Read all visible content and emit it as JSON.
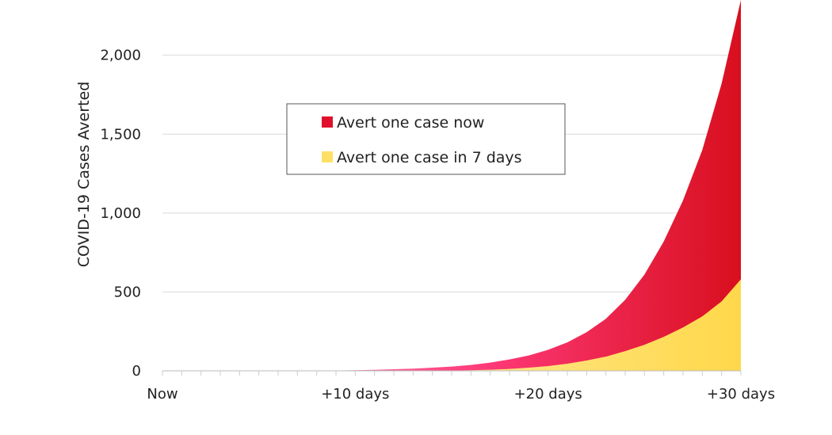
{
  "chart_data": {
    "type": "area",
    "title": "",
    "xlabel": "",
    "ylabel": "COVID-19 Cases Averted",
    "x_ticks": [
      "Now",
      "+10 days",
      "+20 days",
      "+30 days"
    ],
    "x_tick_days": [
      0,
      10,
      20,
      30
    ],
    "ylim": [
      0,
      2350
    ],
    "y_ticks": [
      0,
      500,
      1000,
      1500,
      2000
    ],
    "y_tick_labels": [
      "0",
      "500",
      "1,000",
      "1,500",
      "2,000"
    ],
    "grid": "horizontal",
    "legend_position": "top-left-center",
    "x_days": [
      0,
      1,
      2,
      3,
      4,
      5,
      6,
      7,
      8,
      9,
      10,
      11,
      12,
      13,
      14,
      15,
      16,
      17,
      18,
      19,
      20,
      21,
      22,
      23,
      24,
      25,
      26,
      27,
      28,
      29,
      30
    ],
    "series": [
      {
        "name": "Avert one case now",
        "color": "#e0102c",
        "values": [
          0,
          0,
          0,
          0,
          0,
          0,
          0,
          0,
          0,
          2,
          4,
          6,
          10,
          14,
          20,
          27,
          37,
          52,
          72,
          97,
          133,
          180,
          245,
          330,
          450,
          610,
          820,
          1080,
          1400,
          1820,
          2350
        ]
      },
      {
        "name": "Avert one case in 7 days",
        "color": "#ffe066",
        "values": [
          0,
          0,
          0,
          0,
          0,
          0,
          0,
          0,
          0,
          0,
          0,
          0,
          0,
          0,
          0,
          1,
          4,
          7,
          12,
          20,
          30,
          45,
          65,
          90,
          125,
          165,
          215,
          275,
          345,
          440,
          580
        ]
      }
    ]
  }
}
